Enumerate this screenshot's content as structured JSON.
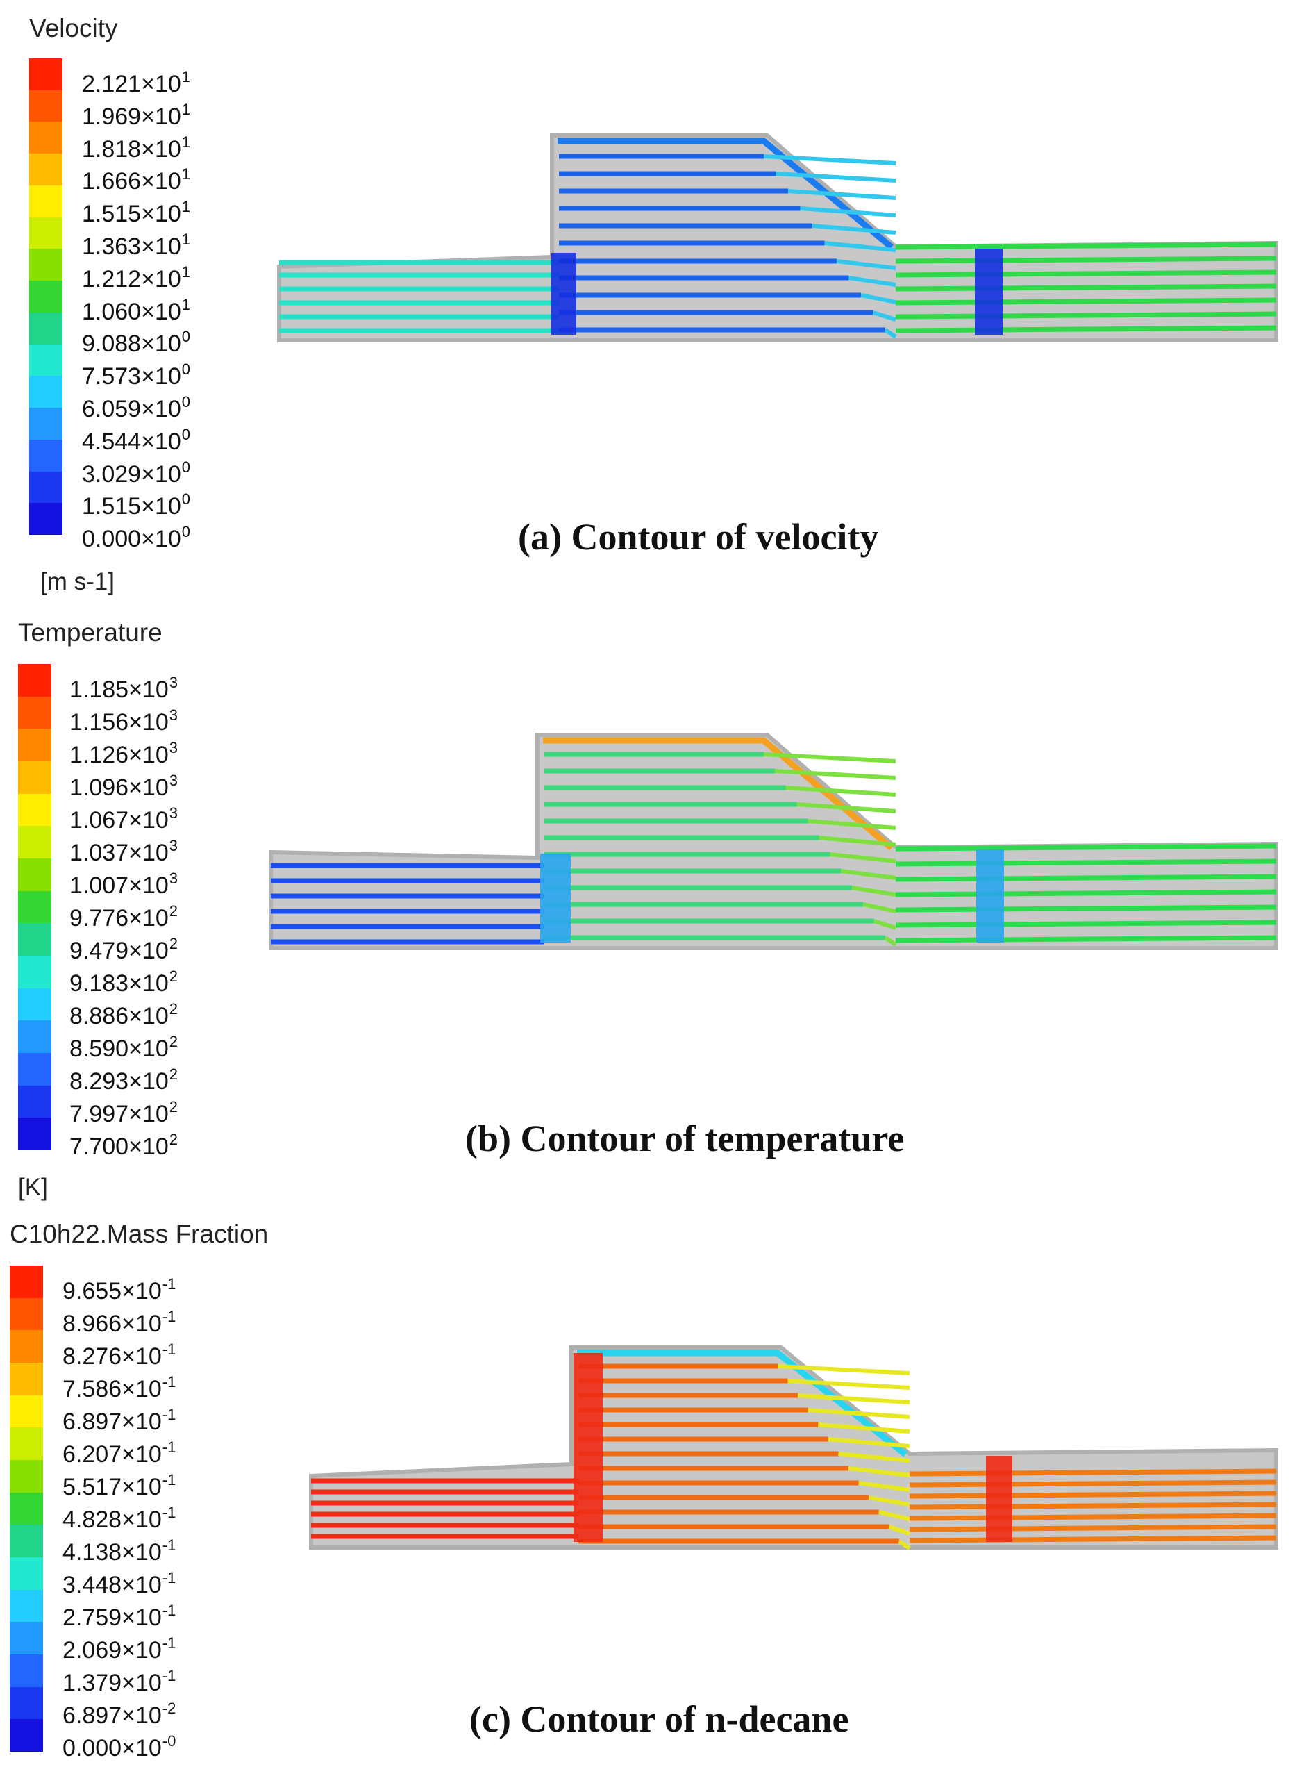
{
  "panels": [
    {
      "id": "a",
      "legend": {
        "title": "Velocity",
        "unit": "[m s-1]",
        "ticks": [
          {
            "m": "2.121",
            "e": "1"
          },
          {
            "m": "1.969",
            "e": "1"
          },
          {
            "m": "1.818",
            "e": "1"
          },
          {
            "m": "1.666",
            "e": "1"
          },
          {
            "m": "1.515",
            "e": "1"
          },
          {
            "m": "1.363",
            "e": "1"
          },
          {
            "m": "1.212",
            "e": "1"
          },
          {
            "m": "1.060",
            "e": "1"
          },
          {
            "m": "9.088",
            "e": "0"
          },
          {
            "m": "7.573",
            "e": "0"
          },
          {
            "m": "6.059",
            "e": "0"
          },
          {
            "m": "4.544",
            "e": "0"
          },
          {
            "m": "3.029",
            "e": "0"
          },
          {
            "m": "1.515",
            "e": "0"
          },
          {
            "m": "0.000",
            "e": "0"
          }
        ]
      },
      "caption": "(a) Contour of velocity",
      "colors": {
        "left": "#26e0c8",
        "right": "#2fd94a",
        "chamber": "#1a62ea",
        "slanted": "#32c8ee",
        "column": "#1530e0",
        "top": "#1a7cf0"
      }
    },
    {
      "id": "b",
      "legend": {
        "title": "Temperature",
        "unit": "[K]",
        "ticks": [
          {
            "m": "1.185",
            "e": "3"
          },
          {
            "m": "1.156",
            "e": "3"
          },
          {
            "m": "1.126",
            "e": "3"
          },
          {
            "m": "1.096",
            "e": "3"
          },
          {
            "m": "1.067",
            "e": "3"
          },
          {
            "m": "1.037",
            "e": "3"
          },
          {
            "m": "1.007",
            "e": "3"
          },
          {
            "m": "9.776",
            "e": "2"
          },
          {
            "m": "9.479",
            "e": "2"
          },
          {
            "m": "9.183",
            "e": "2"
          },
          {
            "m": "8.886",
            "e": "2"
          },
          {
            "m": "8.590",
            "e": "2"
          },
          {
            "m": "8.293",
            "e": "2"
          },
          {
            "m": "7.997",
            "e": "2"
          },
          {
            "m": "7.700",
            "e": "2"
          }
        ]
      },
      "caption": "(b) Contour of temperature",
      "colors": {
        "left": "#1a4ef0",
        "right": "#2cdc4c",
        "chamber": "#3ed67a",
        "slanted": "#7ee040",
        "column": "#28a6ee",
        "top": "#f4a020"
      }
    },
    {
      "id": "c",
      "legend": {
        "title": "C10h22.Mass Fraction",
        "unit": "",
        "ticks": [
          {
            "m": "9.655",
            "e": "-1"
          },
          {
            "m": "8.966",
            "e": "-1"
          },
          {
            "m": "8.276",
            "e": "-1"
          },
          {
            "m": "7.586",
            "e": "-1"
          },
          {
            "m": "6.897",
            "e": "-1"
          },
          {
            "m": "6.207",
            "e": "-1"
          },
          {
            "m": "5.517",
            "e": "-1"
          },
          {
            "m": "4.828",
            "e": "-1"
          },
          {
            "m": "4.138",
            "e": "-1"
          },
          {
            "m": "3.448",
            "e": "-1"
          },
          {
            "m": "2.759",
            "e": "-1"
          },
          {
            "m": "2.069",
            "e": "-1"
          },
          {
            "m": "1.379",
            "e": "-1"
          },
          {
            "m": "6.897",
            "e": "-2"
          },
          {
            "m": "0.000",
            "e": "-0"
          }
        ]
      },
      "caption": "(c) Contour of n-decane",
      "colors": {
        "left": "#f02a14",
        "right": "#f07a14",
        "chamber": "#f06a14",
        "slanted": "#e8e820",
        "column": "#f02a14",
        "top": "#28d4ee"
      }
    }
  ],
  "legend_colors": [
    "#ff2200",
    "#ff5500",
    "#ff8800",
    "#ffbb00",
    "#ffee00",
    "#ccee00",
    "#88e000",
    "#33d633",
    "#22d48a",
    "#22e8d0",
    "#22ccff",
    "#2299ff",
    "#2266ff",
    "#1a38f0",
    "#1410e0"
  ]
}
